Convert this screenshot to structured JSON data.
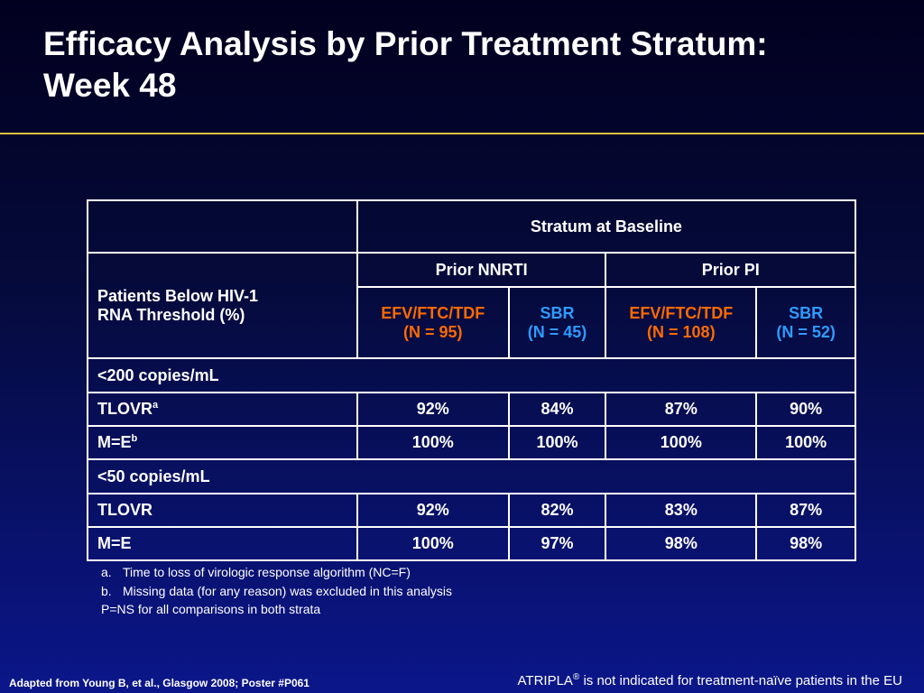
{
  "slide": {
    "title_line1": "Efficacy Analysis by Prior Treatment Stratum:",
    "title_line2": "Week 48"
  },
  "table": {
    "header": {
      "stratum": "Stratum at Baseline",
      "row_label_line1": "Patients Below HIV-1",
      "row_label_line2": "RNA Threshold (%)",
      "groups": [
        "Prior NNRTI",
        "Prior PI"
      ],
      "arms": [
        {
          "name": "EFV/FTC/TDF",
          "n": "(N = 95)",
          "color": "#ff6a00"
        },
        {
          "name": "SBR",
          "n": "(N = 45)",
          "color": "#2f9bff"
        },
        {
          "name": "EFV/FTC/TDF",
          "n": "(N = 108)",
          "color": "#ff6a00"
        },
        {
          "name": "SBR",
          "n": "(N = 52)",
          "color": "#2f9bff"
        }
      ]
    },
    "sections": [
      {
        "label": "<200 copies/mL",
        "rows": [
          {
            "label": "TLOVR",
            "sup": "a",
            "values": [
              "92%",
              "84%",
              "87%",
              "90%"
            ]
          },
          {
            "label": "M=E",
            "sup": "b",
            "values": [
              "100%",
              "100%",
              "100%",
              "100%"
            ]
          }
        ]
      },
      {
        "label": "<50 copies/mL",
        "rows": [
          {
            "label": "TLOVR",
            "sup": "",
            "values": [
              "92%",
              "82%",
              "83%",
              "87%"
            ]
          },
          {
            "label": "M=E",
            "sup": "",
            "values": [
              "100%",
              "97%",
              "98%",
              "98%"
            ]
          }
        ]
      }
    ]
  },
  "footnotes": [
    {
      "label": "a.",
      "text": "Time to loss of virologic response algorithm (NC=F)"
    },
    {
      "label": "b.",
      "text": "Missing data (for any reason) was excluded in this analysis"
    },
    {
      "label": "",
      "text": "P=NS for all comparisons in both strata"
    }
  ],
  "source": "Adapted from Young B, et al., Glasgow 2008; Poster #P061",
  "disclaimer": {
    "brand": "ATRIPLA",
    "mark": "®",
    "text": " is not indicated for treatment-naïve patients in the EU"
  },
  "colors": {
    "accent_orange": "#ff6a00",
    "accent_blue": "#2f9bff",
    "title_rule": "#d8c43b"
  }
}
